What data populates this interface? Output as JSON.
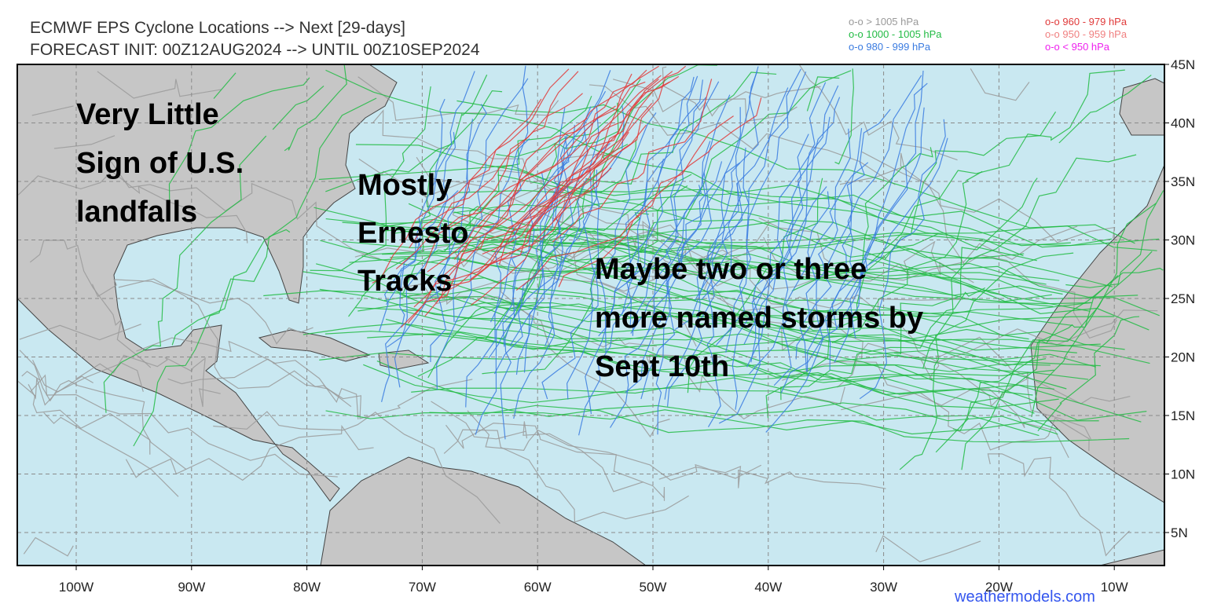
{
  "map": {
    "title": "ECMWF EPS Cyclone Locations --> Next [29-days]",
    "subtitle": "FORECAST INIT: 00Z12AUG2024 --> UNTIL 00Z10SEP2024",
    "legend": [
      {
        "label": "o-o > 1005 hPa",
        "color": "#9a9a9a"
      },
      {
        "label": "o-o 1000 - 1005 hPa",
        "color": "#22bb44"
      },
      {
        "label": "o-o 980 - 999 hPa",
        "color": "#3a7be0"
      },
      {
        "label": "o-o 960 - 979 hPa",
        "color": "#e03a3a"
      },
      {
        "label": "o-o 950 - 959 hPa",
        "color": "#f08080"
      },
      {
        "label": "o-o < 950 hPa",
        "color": "#ee22ee"
      }
    ],
    "lon_labels": [
      "100W",
      "90W",
      "80W",
      "70W",
      "60W",
      "50W",
      "40W",
      "30W",
      "20W",
      "10W"
    ],
    "lat_labels": [
      "45N",
      "40N",
      "35N",
      "30N",
      "25N",
      "20N",
      "15N",
      "10N",
      "5N"
    ],
    "annotations": [
      [
        "Very Little",
        "Sign of U.S.",
        "landfalls"
      ],
      [
        "Mostly",
        "Ernesto",
        "Tracks"
      ],
      [
        "Maybe two or three",
        "more named storms by",
        "Sept 10th"
      ]
    ],
    "credit": "weathermodels.com"
  }
}
